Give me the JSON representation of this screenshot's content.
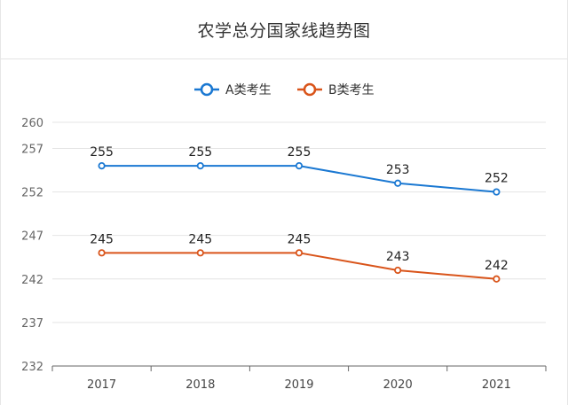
{
  "chart_data": {
    "type": "line",
    "title": "农学总分国家线趋势图",
    "x": [
      "2017",
      "2018",
      "2019",
      "2020",
      "2021"
    ],
    "series": [
      {
        "name": "A类考生",
        "color": "#1a78d2",
        "values": [
          255,
          255,
          255,
          253,
          252
        ]
      },
      {
        "name": "B类考生",
        "color": "#d9541a",
        "values": [
          245,
          245,
          245,
          243,
          242
        ]
      }
    ],
    "y_ticks": [
      232,
      237,
      242,
      247,
      252,
      257,
      260
    ],
    "ylim": [
      232,
      260
    ],
    "xlabel": "",
    "ylabel": "",
    "grid": true,
    "legend_position": "top-center",
    "data_labels": true
  }
}
